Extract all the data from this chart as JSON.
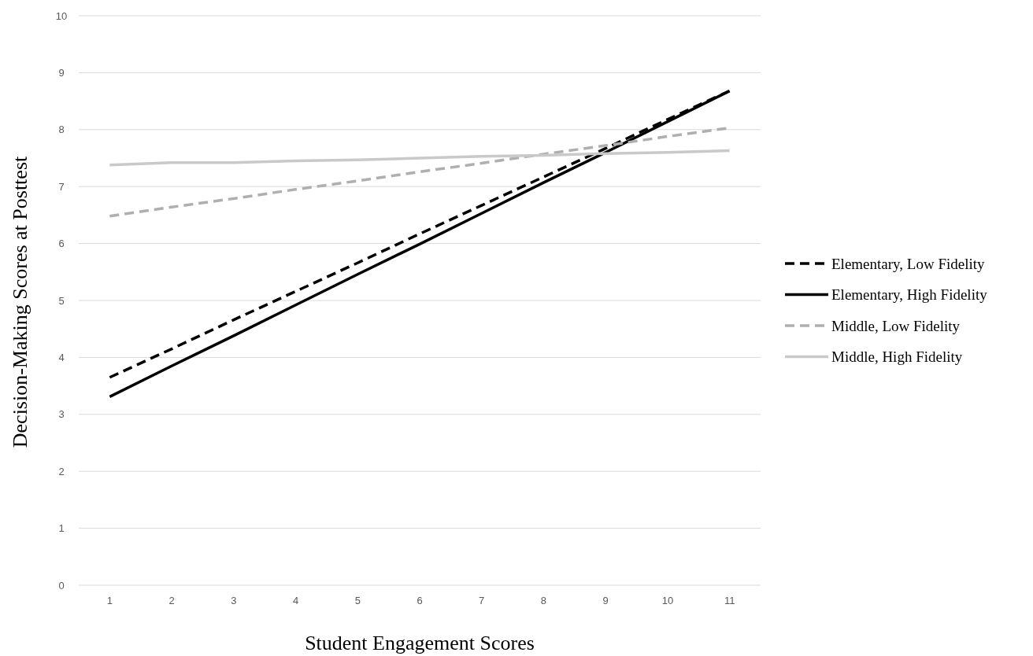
{
  "chart_data": {
    "type": "line",
    "xlabel": "Student Engagement Scores",
    "ylabel": "Decision-Making Scores at Posttest",
    "categories": [
      "1",
      "2",
      "3",
      "4",
      "5",
      "6",
      "7",
      "8",
      "9",
      "10",
      "11"
    ],
    "series": [
      {
        "name": "Elementary, Low Fidelity",
        "color": "#000000",
        "line_style": "dashed",
        "values": [
          3.65,
          4.15,
          4.66,
          5.16,
          5.66,
          6.17,
          6.67,
          7.17,
          7.67,
          8.18,
          8.68
        ]
      },
      {
        "name": "Elementary, High Fidelity",
        "color": "#000000",
        "line_style": "solid",
        "values": [
          3.31,
          3.85,
          4.38,
          4.92,
          5.46,
          5.99,
          6.53,
          7.07,
          7.6,
          8.14,
          8.68
        ]
      },
      {
        "name": "Middle, Low Fidelity",
        "color": "#afafaf",
        "line_style": "dashed",
        "values": [
          6.48,
          6.64,
          6.79,
          6.95,
          7.1,
          7.26,
          7.41,
          7.57,
          7.72,
          7.88,
          8.03
        ]
      },
      {
        "name": "Middle, High Fidelity",
        "color": "#c9c9c9",
        "line_style": "solid",
        "values": [
          7.38,
          7.42,
          7.42,
          7.45,
          7.47,
          7.5,
          7.53,
          7.55,
          7.58,
          7.6,
          7.63
        ]
      }
    ],
    "ylim": [
      0,
      10
    ],
    "yticks": [
      0,
      1,
      2,
      3,
      4,
      5,
      6,
      7,
      8,
      9,
      10
    ],
    "grid": "y",
    "legend": "right",
    "marker": "none"
  }
}
